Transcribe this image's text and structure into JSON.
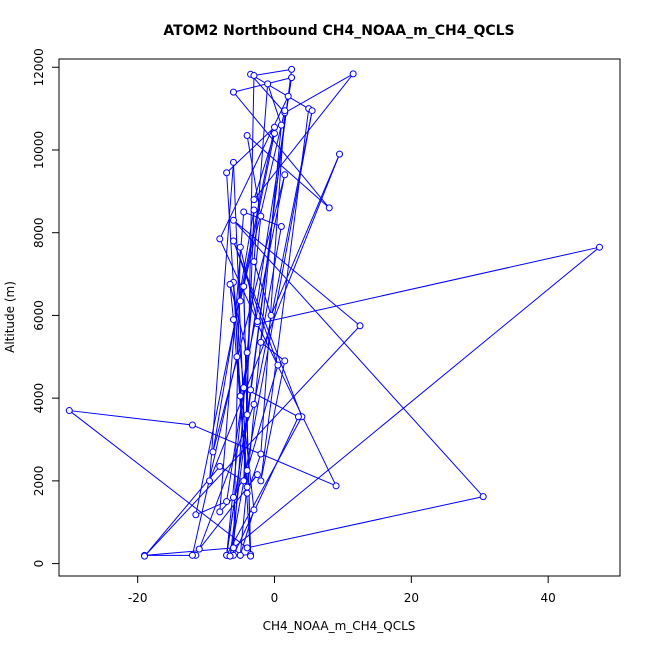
{
  "chart_data": {
    "type": "scatter",
    "title": "ATOM2 Northbound CH4_NOAA_m_CH4_QCLS",
    "xlabel": "CH4_NOAA_m_CH4_QCLS",
    "ylabel": "Altitude (m)",
    "xlim": [
      -31.5,
      50.5
    ],
    "ylim": [
      -300,
      12200
    ],
    "xticks": [
      -20,
      0,
      20,
      40
    ],
    "xtick_labels": [
      "-20",
      "0",
      "20",
      "40"
    ],
    "yticks": [
      0,
      2000,
      4000,
      6000,
      8000,
      10000,
      12000
    ],
    "ytick_labels": [
      "0",
      "2000",
      "4000",
      "6000",
      "8000",
      "10000",
      "12000"
    ],
    "connected": true,
    "grid": false,
    "series_color": "#0000ff",
    "series": [
      {
        "x": [
          -11.5,
          -19,
          -6,
          47.5,
          -2.5,
          9,
          -12,
          -30,
          -4,
          30.5,
          -6,
          12.5,
          -19,
          -8,
          -4.5,
          -3,
          -9,
          1.5,
          -5,
          -7,
          0,
          -11.5,
          -7,
          2.5,
          -6,
          8,
          -4,
          -2,
          -7,
          4,
          -6,
          0.5,
          -4,
          -6,
          -8,
          -4.5,
          1,
          -2,
          1.5,
          -2,
          5,
          -3.5,
          1.5,
          11.5,
          -3,
          0,
          -5,
          1.5,
          -2,
          -4,
          -6,
          -9.5,
          9.5,
          -0.5,
          -3,
          -1,
          1,
          -5,
          -3.5,
          -4.5,
          -3.5,
          -6,
          -4.5,
          3.5,
          -6,
          -5,
          -2.5,
          -8,
          2,
          -3.5,
          -7,
          -4,
          -3,
          2.5,
          -6.5,
          5.5,
          -3,
          -11,
          -2.5,
          -4,
          -6,
          -6.5,
          -4,
          -6,
          -5,
          -3,
          -5.5,
          -12
        ],
        "y": [
          200,
          200,
          380,
          7650,
          5800,
          1880,
          3350,
          3700,
          380,
          1620,
          8300,
          5750,
          180,
          2350,
          2000,
          8550,
          2700,
          9400,
          4050,
          9450,
          10550,
          1180,
          1500,
          11750,
          11400,
          8600,
          10350,
          8400,
          200,
          3550,
          7800,
          4800,
          2250,
          1600,
          1250,
          8500,
          8150,
          5350,
          4900,
          2000,
          11000,
          11830,
          10900,
          11840,
          8800,
          10400,
          6350,
          10950,
          2650,
          1700,
          9700,
          2000,
          9900,
          6000,
          7300,
          11600,
          10600,
          200,
          220,
          6700,
          180,
          6800,
          4250,
          3550,
          200,
          7650,
          5850,
          7850,
          11300,
          4200,
          200,
          3600,
          11800,
          11950,
          180,
          10950,
          3850,
          350,
          2150,
          1850,
          5900,
          6750,
          5100,
          380,
          200,
          1300,
          5000,
          200
        ]
      }
    ]
  }
}
